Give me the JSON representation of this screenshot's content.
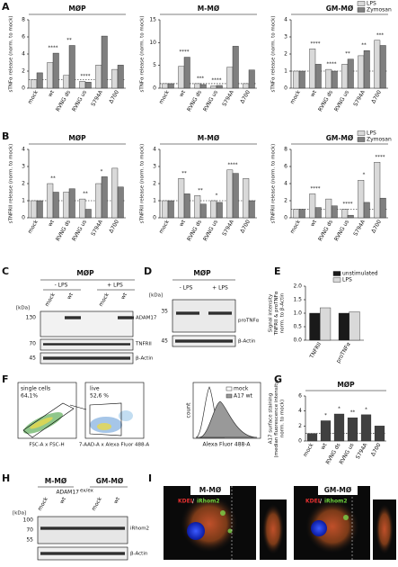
{
  "chart_data": [
    {
      "type": "bar",
      "title": "MØP",
      "ylabel": "sTNFα release (norm. to mock)",
      "categories": [
        "mock",
        "wt",
        "RVNG ds",
        "RVNG us",
        "S794A",
        "Δ700"
      ],
      "series": [
        {
          "name": "LPS",
          "color": "#d9d9d9",
          "values": [
            1,
            3,
            1.5,
            0.8,
            2.7,
            2.2
          ]
        },
        {
          "name": "Zymosan",
          "color": "#7f7f7f",
          "values": [
            1.8,
            4.1,
            5,
            0.7,
            6.1,
            2.7
          ]
        }
      ],
      "ylim": [
        0,
        8
      ],
      "yticks": [
        0,
        2,
        4,
        6,
        8
      ],
      "reference_line": 1,
      "annotations": [
        {
          "x": "wt",
          "text": "****"
        },
        {
          "x": "RVNG ds",
          "text": "**"
        },
        {
          "x": "RVNG us",
          "text": "****"
        }
      ]
    },
    {
      "type": "bar",
      "title": "M-MØ",
      "ylabel": "sTNFα release (norm. to mock)",
      "categories": [
        "mock",
        "wt",
        "RVNG ds",
        "RVNG us",
        "S794A",
        "Δ700"
      ],
      "series": [
        {
          "name": "LPS",
          "color": "#d9d9d9",
          "values": [
            1,
            4.8,
            1,
            0.5,
            4.6,
            1
          ]
        },
        {
          "name": "Zymosan",
          "color": "#7f7f7f",
          "values": [
            1,
            6.8,
            0.8,
            0.6,
            9.2,
            4
          ]
        }
      ],
      "ylim": [
        0,
        15
      ],
      "yticks": [
        0,
        5,
        10,
        15
      ],
      "reference_line": 1,
      "annotations": [
        {
          "x": "wt",
          "text": "****"
        },
        {
          "x": "RVNG ds",
          "text": "***"
        },
        {
          "x": "RVNG us",
          "text": "****"
        }
      ]
    },
    {
      "type": "bar",
      "title": "GM-MØ",
      "ylabel": "sTNFα release (norm. to mock)",
      "categories": [
        "mock",
        "wt",
        "RVNG ds",
        "RVNG us",
        "S794A",
        "Δ700"
      ],
      "series": [
        {
          "name": "LPS",
          "color": "#d9d9d9",
          "values": [
            1,
            2.3,
            1.1,
            1.4,
            1.9,
            2.8
          ]
        },
        {
          "name": "Zymosan",
          "color": "#7f7f7f",
          "values": [
            1,
            1.4,
            1,
            1.7,
            2.2,
            2.5
          ]
        }
      ],
      "ylim": [
        0,
        4
      ],
      "yticks": [
        0,
        1,
        2,
        3,
        4
      ],
      "reference_line": 1,
      "legend": "upper right",
      "annotations": [
        {
          "x": "wt",
          "text": "****"
        },
        {
          "x": "RVNG ds",
          "text": "****"
        },
        {
          "x": "RVNG us",
          "text": "**"
        },
        {
          "x": "S794A",
          "text": "**"
        },
        {
          "x": "Δ700",
          "text": "***"
        }
      ]
    },
    {
      "type": "bar",
      "title": "MØP",
      "ylabel": "sTNFRII release (norm. to mock)",
      "categories": [
        "mock",
        "wt",
        "RVNG ds",
        "RVNG us",
        "S794A",
        "Δ700"
      ],
      "series": [
        {
          "name": "LPS",
          "color": "#d9d9d9",
          "values": [
            1,
            2,
            1.5,
            1.1,
            2,
            2.9
          ]
        },
        {
          "name": "Zymosan",
          "color": "#7f7f7f",
          "values": [
            1,
            1.5,
            1.7,
            0.5,
            2.4,
            1.8
          ]
        }
      ],
      "ylim": [
        0,
        4
      ],
      "yticks": [
        0,
        1,
        2,
        3,
        4
      ],
      "reference_line": 1,
      "annotations": [
        {
          "x": "wt",
          "text": "**"
        },
        {
          "x": "RVNG us",
          "text": "**"
        },
        {
          "x": "S794A",
          "text": "*"
        }
      ]
    },
    {
      "type": "bar",
      "title": "M-MØ",
      "ylabel": "sTNFRII release (norm. to mock)",
      "categories": [
        "mock",
        "wt",
        "RVNG ds",
        "RVNG us",
        "S794A",
        "Δ700"
      ],
      "series": [
        {
          "name": "LPS",
          "color": "#d9d9d9",
          "values": [
            1,
            2.3,
            1.3,
            1,
            2.8,
            2.3
          ]
        },
        {
          "name": "Zymosan",
          "color": "#7f7f7f",
          "values": [
            1,
            1.4,
            0.8,
            0.9,
            2.6,
            1
          ]
        }
      ],
      "ylim": [
        0,
        4
      ],
      "yticks": [
        0,
        1,
        2,
        3,
        4
      ],
      "reference_line": 1,
      "annotations": [
        {
          "x": "wt",
          "text": "**"
        },
        {
          "x": "RVNG ds",
          "text": "**"
        },
        {
          "x": "RVNG us",
          "text": "*"
        },
        {
          "x": "S794A",
          "text": "****"
        }
      ]
    },
    {
      "type": "bar",
      "title": "GM-MØ",
      "ylabel": "sTNFRII release (norm. to mock)",
      "categories": [
        "mock",
        "wt",
        "RVNG ds",
        "RVNG us",
        "S794A",
        "Δ700"
      ],
      "series": [
        {
          "name": "LPS",
          "color": "#d9d9d9",
          "values": [
            1,
            2.8,
            2.2,
            1,
            4.4,
            6.5
          ]
        },
        {
          "name": "Zymosan",
          "color": "#7f7f7f",
          "values": [
            1,
            1.2,
            1.4,
            0.3,
            1.8,
            2.3
          ]
        }
      ],
      "ylim": [
        0,
        8
      ],
      "yticks": [
        0,
        2,
        4,
        6,
        8
      ],
      "reference_line": 1,
      "legend": "upper right",
      "annotations": [
        {
          "x": "wt",
          "text": "****"
        },
        {
          "x": "RVNG us",
          "text": "****"
        },
        {
          "x": "S794A",
          "text": "*"
        },
        {
          "x": "Δ700",
          "text": "****"
        }
      ]
    },
    {
      "type": "bar",
      "ylabel": [
        "Signal intensity",
        "TNFRII & proTNFα",
        "norm. to β-Actin"
      ],
      "categories": [
        "TNFRII",
        "proTNFα"
      ],
      "series": [
        {
          "name": "unstimulated",
          "color": "#1a1a1a",
          "values": [
            1,
            1
          ]
        },
        {
          "name": "LPS",
          "color": "#d9d9d9",
          "values": [
            1.2,
            1.05
          ]
        }
      ],
      "ylim": [
        0,
        2
      ],
      "yticks": [
        {
          "value": 0,
          "label": "0.0"
        },
        0.5,
        {
          "value": 1,
          "label": "1.0"
        },
        1.5,
        {
          "value": 2,
          "label": "2.0"
        }
      ],
      "legend": "upper right"
    },
    {
      "type": "bar",
      "title": "MØP",
      "ylabel": [
        "A17 surface staining",
        "(median fluorescence intensity,",
        "norm. to mock)"
      ],
      "categories": [
        "mock",
        "wt",
        "RVNG ds",
        "RVNG us",
        "S794A",
        "Δ700"
      ],
      "series": [
        {
          "name": "A17",
          "color": "#404040",
          "values": [
            1,
            2.7,
            3.6,
            3.1,
            3.5,
            2
          ]
        }
      ],
      "ylim": [
        0,
        6
      ],
      "yticks": [
        0,
        2,
        4,
        6
      ],
      "reference_line": 1,
      "annotations": [
        {
          "x": "wt",
          "text": "*"
        },
        {
          "x": "RVNG ds",
          "text": "*"
        },
        {
          "x": "RVNG us",
          "text": "**"
        },
        {
          "x": "S794A",
          "text": "*"
        }
      ]
    }
  ],
  "figure": {
    "panel_labels": [
      "A",
      "B",
      "C",
      "D",
      "E",
      "F",
      "G",
      "H",
      "I"
    ],
    "C": {
      "title": "MØP",
      "conditions": [
        "- LPS",
        "+ LPS"
      ],
      "lanes": [
        "mock",
        "wt",
        "mock",
        "wt"
      ],
      "unit": "[kDa]",
      "markers": [
        "130",
        "70",
        "45"
      ],
      "bands": [
        "ADAM17",
        "TNFRII",
        "β-Actin"
      ]
    },
    "D": {
      "title": "MØP",
      "conditions": [
        "- LPS",
        "+ LPS"
      ],
      "unit": "[kDa]",
      "markers": [
        "35",
        "45"
      ],
      "bands": [
        "proTNFα",
        "β-Actin"
      ]
    },
    "F": {
      "gate1": [
        "single cells",
        "64,1%"
      ],
      "gate2": [
        "live",
        "52,6 %"
      ],
      "axis1": "FSC-A x FSC-H",
      "axis2": "7-AAD-A x Alexa Fluor 488-A",
      "histogram": {
        "legend": [
          "mock",
          "A17 wt"
        ],
        "ylabel": "count",
        "xlabel": "Alexa Fluor 488-A"
      }
    },
    "H": {
      "groups": [
        "M-MØ",
        "GM-MØ"
      ],
      "genotype": "ADAM17",
      "genotype_sup": "ex/ex",
      "lanes": [
        "mock",
        "wt",
        "mock",
        "wt"
      ],
      "unit": "[kDa]",
      "markers": [
        "100",
        "70",
        "55"
      ],
      "bands": [
        "iRhom2",
        "β-Actin"
      ]
    },
    "I": {
      "cells": [
        "M-MØ",
        "GM-MØ"
      ],
      "stain1": "KDEL",
      "separator": "/",
      "stain2": "iRhom2"
    }
  }
}
